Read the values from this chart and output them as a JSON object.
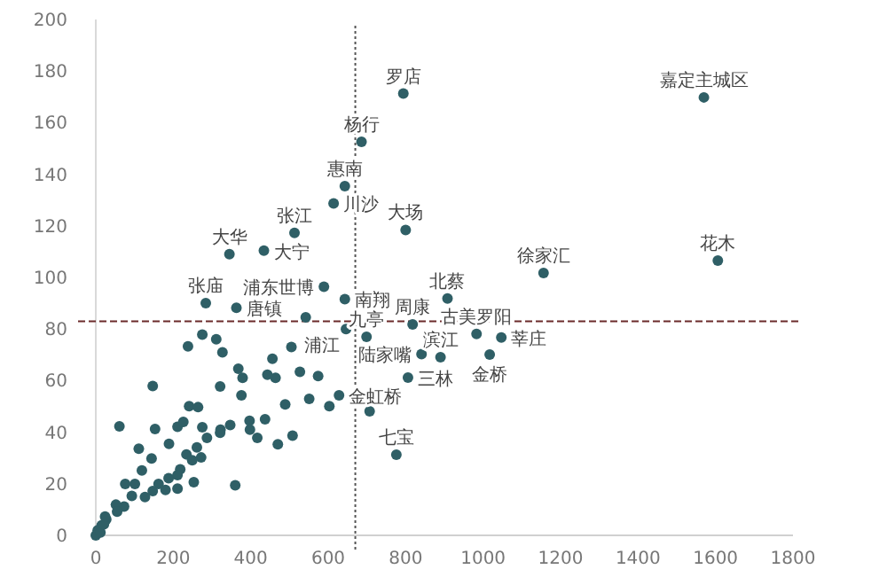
{
  "chart_data": {
    "type": "scatter",
    "color": "#2f5f66",
    "marker": "circle",
    "x": [
      794,
      686,
      643,
      614,
      513,
      434,
      345,
      800,
      589,
      643,
      284,
      363,
      542,
      646,
      818,
      908,
      1156,
      983,
      1047,
      1017,
      841,
      890,
      699,
      806,
      628,
      776,
      1570,
      1606,
      275,
      311,
      238,
      327,
      505,
      456,
      368,
      379,
      443,
      464,
      527,
      574,
      147,
      321,
      376,
      489,
      551,
      603,
      707,
      241,
      264,
      437,
      397,
      398,
      417,
      470,
      508,
      347,
      322,
      321,
      287,
      275,
      261,
      272,
      211,
      226,
      61,
      153,
      111,
      144,
      119,
      189,
      234,
      249,
      218,
      188,
      211,
      162,
      147,
      127,
      101,
      76,
      93,
      73,
      52,
      55,
      253,
      360,
      180,
      211,
      27,
      15,
      5,
      0,
      12,
      21,
      24
    ],
    "values": [
      171.3,
      152.6,
      135.4,
      128.7,
      117.3,
      110.4,
      109,
      118.4,
      96.4,
      91.6,
      90,
      88.2,
      84.5,
      80,
      81.8,
      91.8,
      101.7,
      78.1,
      76.7,
      70.1,
      70.3,
      69.1,
      77,
      61.2,
      54.3,
      31.3,
      169.8,
      106.5,
      77.8,
      76,
      73.3,
      71,
      73,
      68.5,
      64.6,
      61.1,
      62.3,
      61.1,
      63.4,
      61.8,
      57.9,
      57.7,
      54.3,
      50.8,
      52.9,
      50.1,
      48.1,
      50.1,
      49.7,
      45,
      44.4,
      41,
      37.8,
      35.3,
      38.7,
      42.8,
      41,
      39.8,
      37.8,
      41.9,
      34.1,
      30.2,
      42.1,
      44,
      42.3,
      41.2,
      33.6,
      29.8,
      25.2,
      35.5,
      31.4,
      29.1,
      25.6,
      22.2,
      23.4,
      19.9,
      17.2,
      14.9,
      19.9,
      19.9,
      15.3,
      11.2,
      11.9,
      9.2,
      20.6,
      19.4,
      17.6,
      18.1,
      6.2,
      3.9,
      2,
      0,
      1.1,
      4.3,
      7.3
    ],
    "xlim": [
      0,
      1800
    ],
    "xticks": [
      0,
      200,
      400,
      600,
      800,
      1000,
      1200,
      1400,
      1600,
      1800
    ],
    "ylim": [
      0,
      200
    ],
    "yticks": [
      0,
      20,
      40,
      60,
      80,
      100,
      120,
      140,
      160,
      180,
      200
    ],
    "grid": false,
    "ref_lines": [
      {
        "axis": "x",
        "value": 670,
        "color": "#555555",
        "line_style": "dotted"
      },
      {
        "axis": "y",
        "value": 83,
        "color": "#6b2a2a",
        "line_style": "dashed"
      }
    ],
    "annotations": [
      {
        "text": "罗店",
        "x": 794,
        "y": 171.3
      },
      {
        "text": "杨行",
        "x": 686,
        "y": 152.6
      },
      {
        "text": "惠南",
        "x": 643,
        "y": 135.4
      },
      {
        "text": "川沙",
        "x": 614,
        "y": 128.7
      },
      {
        "text": "张江",
        "x": 513,
        "y": 117.3
      },
      {
        "text": "大宁",
        "x": 434,
        "y": 110.4
      },
      {
        "text": "大华",
        "x": 345,
        "y": 109
      },
      {
        "text": "大场",
        "x": 800,
        "y": 118.4
      },
      {
        "text": "浦东世博",
        "x": 589,
        "y": 96.4
      },
      {
        "text": "南翔",
        "x": 643,
        "y": 91.6
      },
      {
        "text": "张庙",
        "x": 284,
        "y": 90
      },
      {
        "text": "唐镇",
        "x": 363,
        "y": 88.2
      },
      {
        "text": "浦江",
        "x": 646,
        "y": 80
      },
      {
        "text": "周康",
        "x": 818,
        "y": 81.8
      },
      {
        "text": "北蔡",
        "x": 908,
        "y": 91.8
      },
      {
        "text": "徐家汇",
        "x": 1156,
        "y": 101.7
      },
      {
        "text": "古美罗阳",
        "x": 983,
        "y": 78.1
      },
      {
        "text": "莘庄",
        "x": 1047,
        "y": 76.7
      },
      {
        "text": "金桥",
        "x": 1017,
        "y": 70.1
      },
      {
        "text": "陆家嘴",
        "x": 841,
        "y": 70.3
      },
      {
        "text": "滨江",
        "x": 890,
        "y": 69.1
      },
      {
        "text": "九亭",
        "x": 699,
        "y": 77
      },
      {
        "text": "三林",
        "x": 806,
        "y": 61.2
      },
      {
        "text": "金虹桥",
        "x": 628,
        "y": 54.3
      },
      {
        "text": "七宝",
        "x": 776,
        "y": 31.3
      },
      {
        "text": "嘉定主城区",
        "x": 1570,
        "y": 169.8
      },
      {
        "text": "花木",
        "x": 1606,
        "y": 106.5
      }
    ]
  }
}
